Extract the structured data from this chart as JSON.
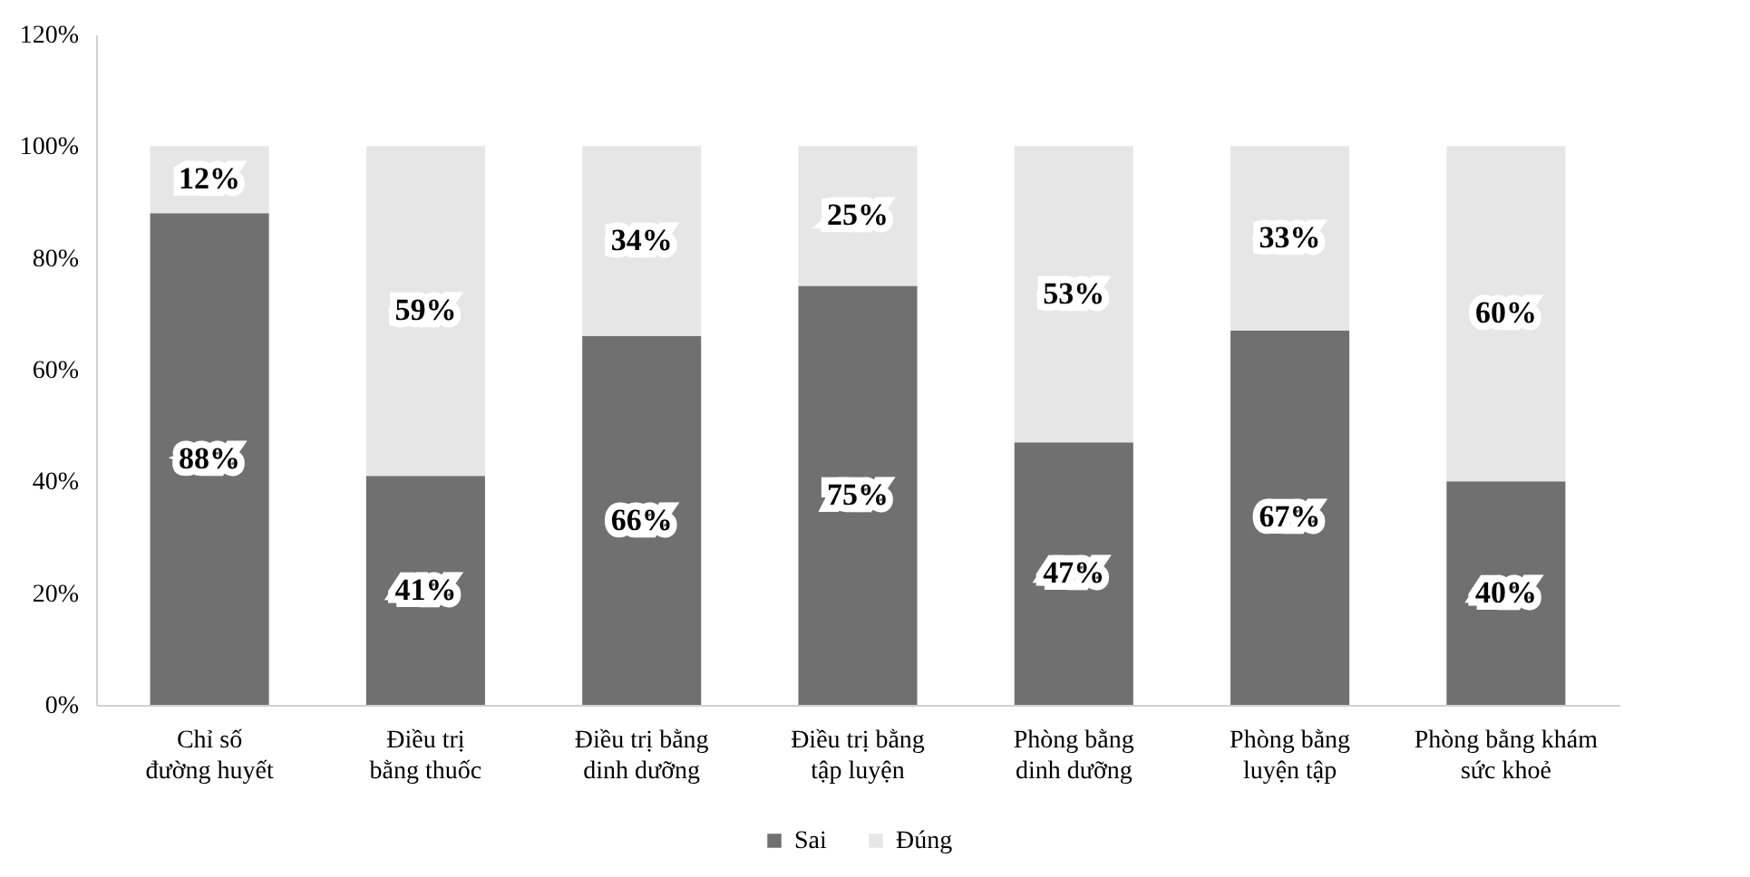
{
  "chart_data": {
    "type": "bar",
    "stacked": true,
    "categories": [
      "Chỉ số đường huyết",
      "Điều trị bằng thuốc",
      "Điều trị bằng dinh dưỡng",
      "Điều trị bằng tập luyện",
      "Phòng bằng dinh dưỡng",
      "Phòng bằng luyện tập",
      "Phòng bằng khám sức khoẻ"
    ],
    "series": [
      {
        "name": "Sai",
        "color": "#707070",
        "values": [
          88,
          41,
          66,
          75,
          47,
          67,
          40
        ],
        "value_labels": [
          "88%",
          "41%",
          "66%",
          "75%",
          "47%",
          "67%",
          "40%"
        ]
      },
      {
        "name": "Đúng",
        "color": "#e6e6e6",
        "values": [
          12,
          59,
          34,
          25,
          53,
          33,
          60
        ],
        "value_labels": [
          "12%",
          "59%",
          "34%",
          "25%",
          "53%",
          "33%",
          "60%"
        ]
      }
    ],
    "ylim": [
      0,
      120
    ],
    "yticks": [
      {
        "value": 0,
        "label": "0%"
      },
      {
        "value": 20,
        "label": "20%"
      },
      {
        "value": 40,
        "label": "40%"
      },
      {
        "value": 60,
        "label": "60%"
      },
      {
        "value": 80,
        "label": "80%"
      },
      {
        "value": 100,
        "label": "100%"
      },
      {
        "value": 120,
        "label": "120%"
      }
    ],
    "grid": false,
    "legend": "bottom"
  }
}
